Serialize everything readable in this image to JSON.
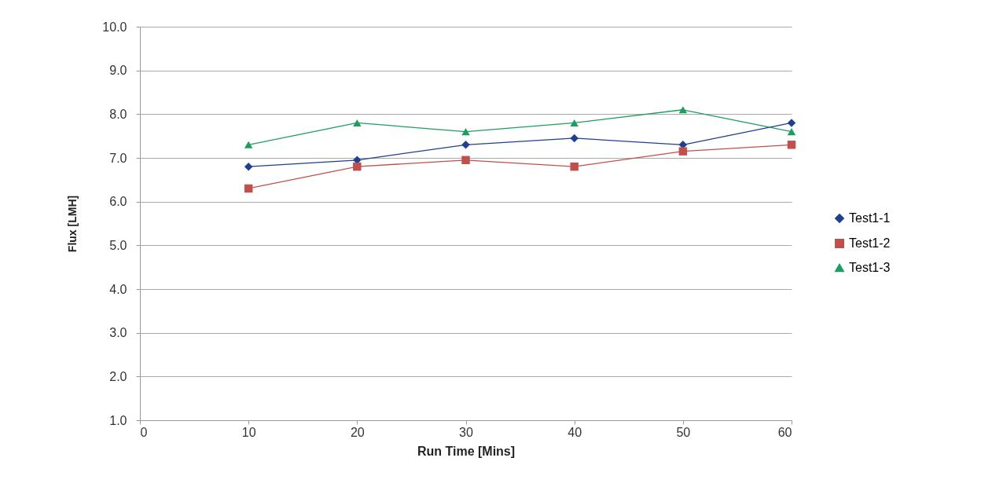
{
  "chart_data": {
    "type": "line",
    "xlabel": "Run Time [Mins]",
    "ylabel": "Flux [LMH]",
    "x": [
      10,
      20,
      30,
      40,
      50,
      60
    ],
    "xlim": [
      0,
      60
    ],
    "xticks": [
      0,
      10,
      20,
      30,
      40,
      50,
      60
    ],
    "ylim": [
      1,
      10
    ],
    "yticks": [
      {
        "value": 1,
        "label": "1.0"
      },
      {
        "value": 2,
        "label": "2.0"
      },
      {
        "value": 3,
        "label": "3.0"
      },
      {
        "value": 4,
        "label": "4.0"
      },
      {
        "value": 5,
        "label": "5.0"
      },
      {
        "value": 6,
        "label": "6.0"
      },
      {
        "value": 7,
        "label": "7.0"
      },
      {
        "value": 8,
        "label": "8.0"
      },
      {
        "value": 9,
        "label": "9.0"
      },
      {
        "value": 10,
        "label": "10.0"
      }
    ],
    "grid": "y",
    "legend": "right",
    "series": [
      {
        "name": "Test1-1",
        "color": "#1f3f8f",
        "marker": "diamond",
        "values": [
          6.8,
          6.95,
          7.3,
          7.45,
          7.3,
          7.8
        ]
      },
      {
        "name": "Test1-2",
        "color": "#c0504d",
        "marker": "square",
        "values": [
          6.3,
          6.8,
          6.95,
          6.8,
          7.15,
          7.3
        ]
      },
      {
        "name": "Test1-3",
        "color": "#1e9e5e",
        "marker": "triangle",
        "values": [
          7.3,
          7.8,
          7.6,
          7.8,
          8.1,
          7.6
        ]
      }
    ]
  }
}
